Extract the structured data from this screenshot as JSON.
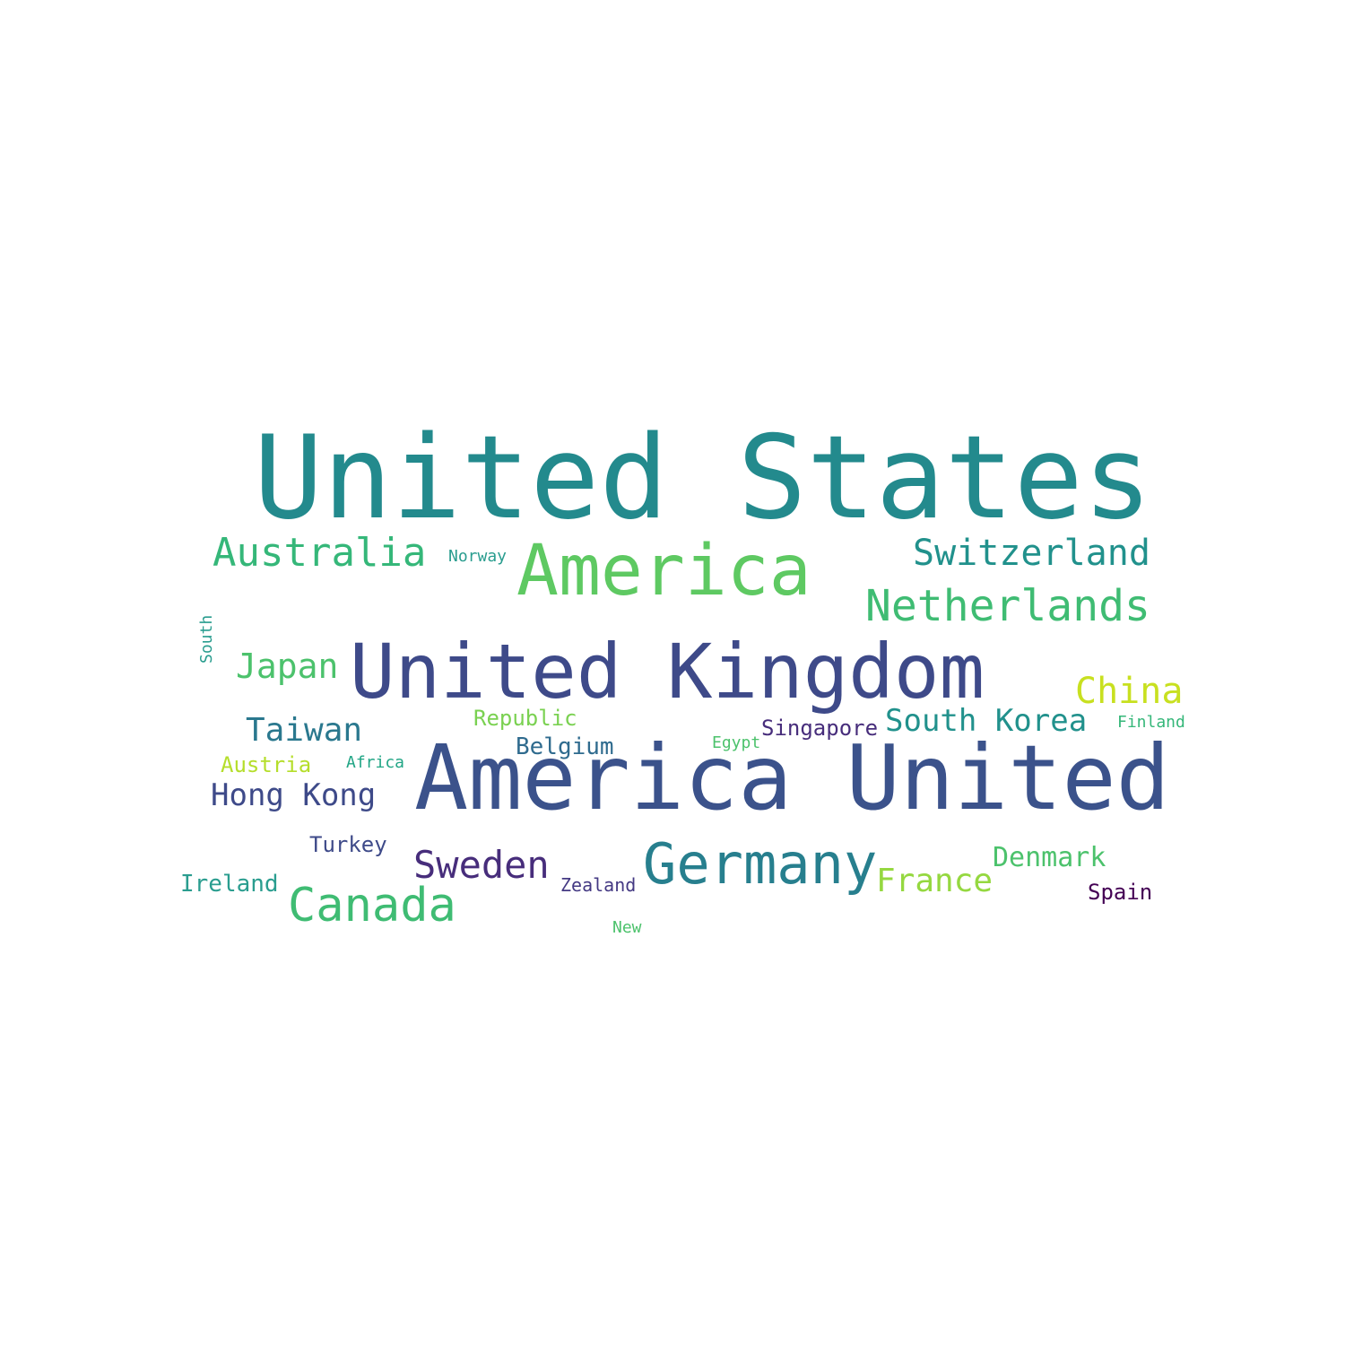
{
  "words": [
    {
      "text": "United States",
      "color": "#238a8d"
    },
    {
      "text": "America",
      "color": "#5ec962"
    },
    {
      "text": "Australia",
      "color": "#35b779"
    },
    {
      "text": "Norway",
      "color": "#2a9d8f"
    },
    {
      "text": "Switzerland",
      "color": "#21918c"
    },
    {
      "text": "Netherlands",
      "color": "#3fbc73"
    },
    {
      "text": "South",
      "color": "#2a9d8f"
    },
    {
      "text": "Japan",
      "color": "#4cc26c"
    },
    {
      "text": "United Kingdom",
      "color": "#3e4a89"
    },
    {
      "text": "China",
      "color": "#c8e020"
    },
    {
      "text": "Taiwan",
      "color": "#2a788e"
    },
    {
      "text": "Republic",
      "color": "#7ad151"
    },
    {
      "text": "Singapore",
      "color": "#472d7b"
    },
    {
      "text": "South Korea",
      "color": "#21918c"
    },
    {
      "text": "Finland",
      "color": "#35b779"
    },
    {
      "text": "Belgium",
      "color": "#2f6b8e"
    },
    {
      "text": "Egypt",
      "color": "#4cc26c"
    },
    {
      "text": "Austria",
      "color": "#b5de2b"
    },
    {
      "text": "Africa",
      "color": "#21a585"
    },
    {
      "text": "America United",
      "color": "#3b528b"
    },
    {
      "text": "Hong Kong",
      "color": "#3e4a89"
    },
    {
      "text": "Turkey",
      "color": "#3e4a89"
    },
    {
      "text": "Sweden",
      "color": "#472d7b"
    },
    {
      "text": "Germany",
      "color": "#277f8e"
    },
    {
      "text": "Denmark",
      "color": "#4cc26c"
    },
    {
      "text": "Ireland",
      "color": "#2a9d8f"
    },
    {
      "text": "Zealand",
      "color": "#443983"
    },
    {
      "text": "France",
      "color": "#95d840"
    },
    {
      "text": "Spain",
      "color": "#440154"
    },
    {
      "text": "Canada",
      "color": "#3fbc73"
    },
    {
      "text": "New",
      "color": "#4cc26c"
    }
  ]
}
